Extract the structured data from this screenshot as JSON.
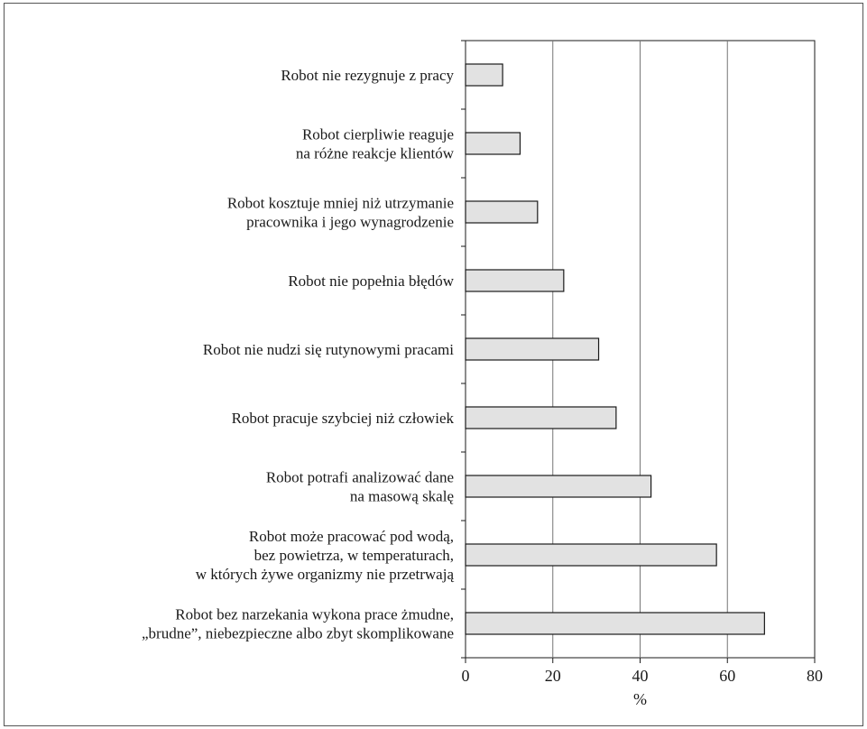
{
  "chart_data": {
    "type": "bar",
    "orientation": "horizontal",
    "title": "",
    "xlabel": "%",
    "ylabel": "",
    "xlim": [
      0,
      80
    ],
    "x_ticks": [
      "0",
      "20",
      "40",
      "60",
      "80"
    ],
    "grid": "vertical lines at 20, 40, 60",
    "legend": "none",
    "bar_color": "#e2e2e2",
    "bar_edge_color": "#1a1a1a",
    "categories": [
      [
        "Robot nie rezygnuje z pracy"
      ],
      [
        "Robot cierpliwie reaguje",
        "na różne reakcje klientów"
      ],
      [
        "Robot kosztuje mniej niż utrzymanie",
        "pracownika i jego wynagrodzenie"
      ],
      [
        "Robot nie popełnia błędów"
      ],
      [
        "Robot nie nudzi się rutynowymi pracami"
      ],
      [
        "Robot pracuje szybciej niż człowiek"
      ],
      [
        "Robot potrafi analizować dane",
        "na masową skalę"
      ],
      [
        "Robot może pracować pod wodą,",
        "bez powietrza, w temperaturach,",
        "w których żywe organizmy nie przetrwają"
      ],
      [
        "Robot bez narzekania wykona prace żmudne,",
        "„brudne”, niebezpieczne albo zbyt skomplikowane"
      ]
    ],
    "values": [
      8.5,
      12.5,
      16.5,
      22.5,
      30.5,
      34.5,
      42.5,
      57.5,
      68.5
    ]
  }
}
